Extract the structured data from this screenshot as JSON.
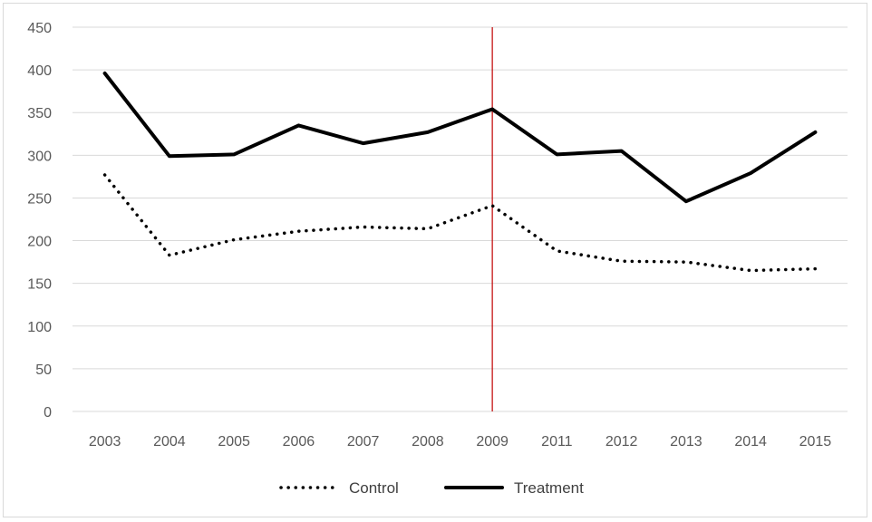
{
  "chart_data": {
    "type": "line",
    "title": "",
    "xlabel": "",
    "ylabel": "",
    "categories": [
      "2003",
      "2004",
      "2005",
      "2006",
      "2007",
      "2008",
      "2009",
      "2011",
      "2012",
      "2013",
      "2014",
      "2015"
    ],
    "ylim": [
      0,
      450
    ],
    "yticks": [
      0,
      50,
      100,
      150,
      200,
      250,
      300,
      350,
      400,
      450
    ],
    "grid": true,
    "legend_position": "bottom",
    "intervention_marker": {
      "category": "2009",
      "color": "#c00000"
    },
    "series": [
      {
        "name": "Control",
        "style": "dotted",
        "color": "#000000",
        "values": [
          277,
          183,
          201,
          211,
          216,
          214,
          241,
          188,
          176,
          175,
          165,
          167
        ]
      },
      {
        "name": "Treatment",
        "style": "solid",
        "color": "#000000",
        "values": [
          396,
          299,
          301,
          335,
          314,
          327,
          354,
          301,
          305,
          246,
          279,
          327
        ]
      }
    ],
    "gridline_color": "#d9d9d9"
  }
}
